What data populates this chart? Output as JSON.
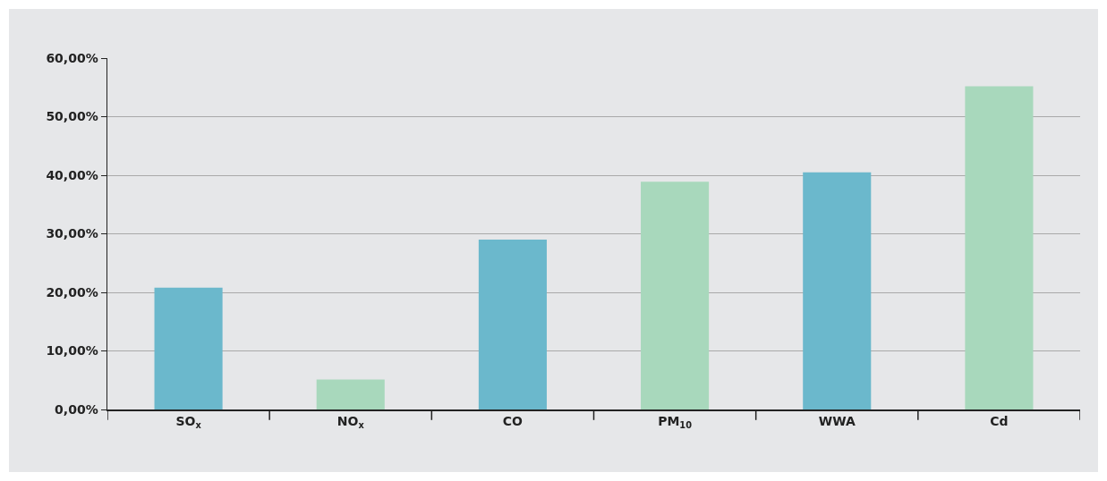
{
  "chart_data": {
    "type": "bar",
    "categories": [
      "SO$_{x}$",
      "NO$_{x}$",
      "CO",
      "PM$_{10}$",
      "WWA",
      "Cd"
    ],
    "values": [
      20.8,
      5.1,
      29.0,
      38.9,
      40.5,
      55.2
    ],
    "colors": [
      "#6bb8cc",
      "#a8d8bc",
      "#6bb8cc",
      "#a8d8bc",
      "#6bb8cc",
      "#a8d8bc"
    ],
    "ylim": [
      0,
      60
    ],
    "yticks": [
      {
        "value": 0,
        "label": "0,00%"
      },
      {
        "value": 10,
        "label": "10,00%"
      },
      {
        "value": 20,
        "label": "20,00%"
      },
      {
        "value": 30,
        "label": "30,00%"
      },
      {
        "value": 40,
        "label": "40,00%"
      },
      {
        "value": 50,
        "label": "50,00%"
      },
      {
        "value": 60,
        "label": "60,00%"
      }
    ],
    "grid": "y"
  }
}
